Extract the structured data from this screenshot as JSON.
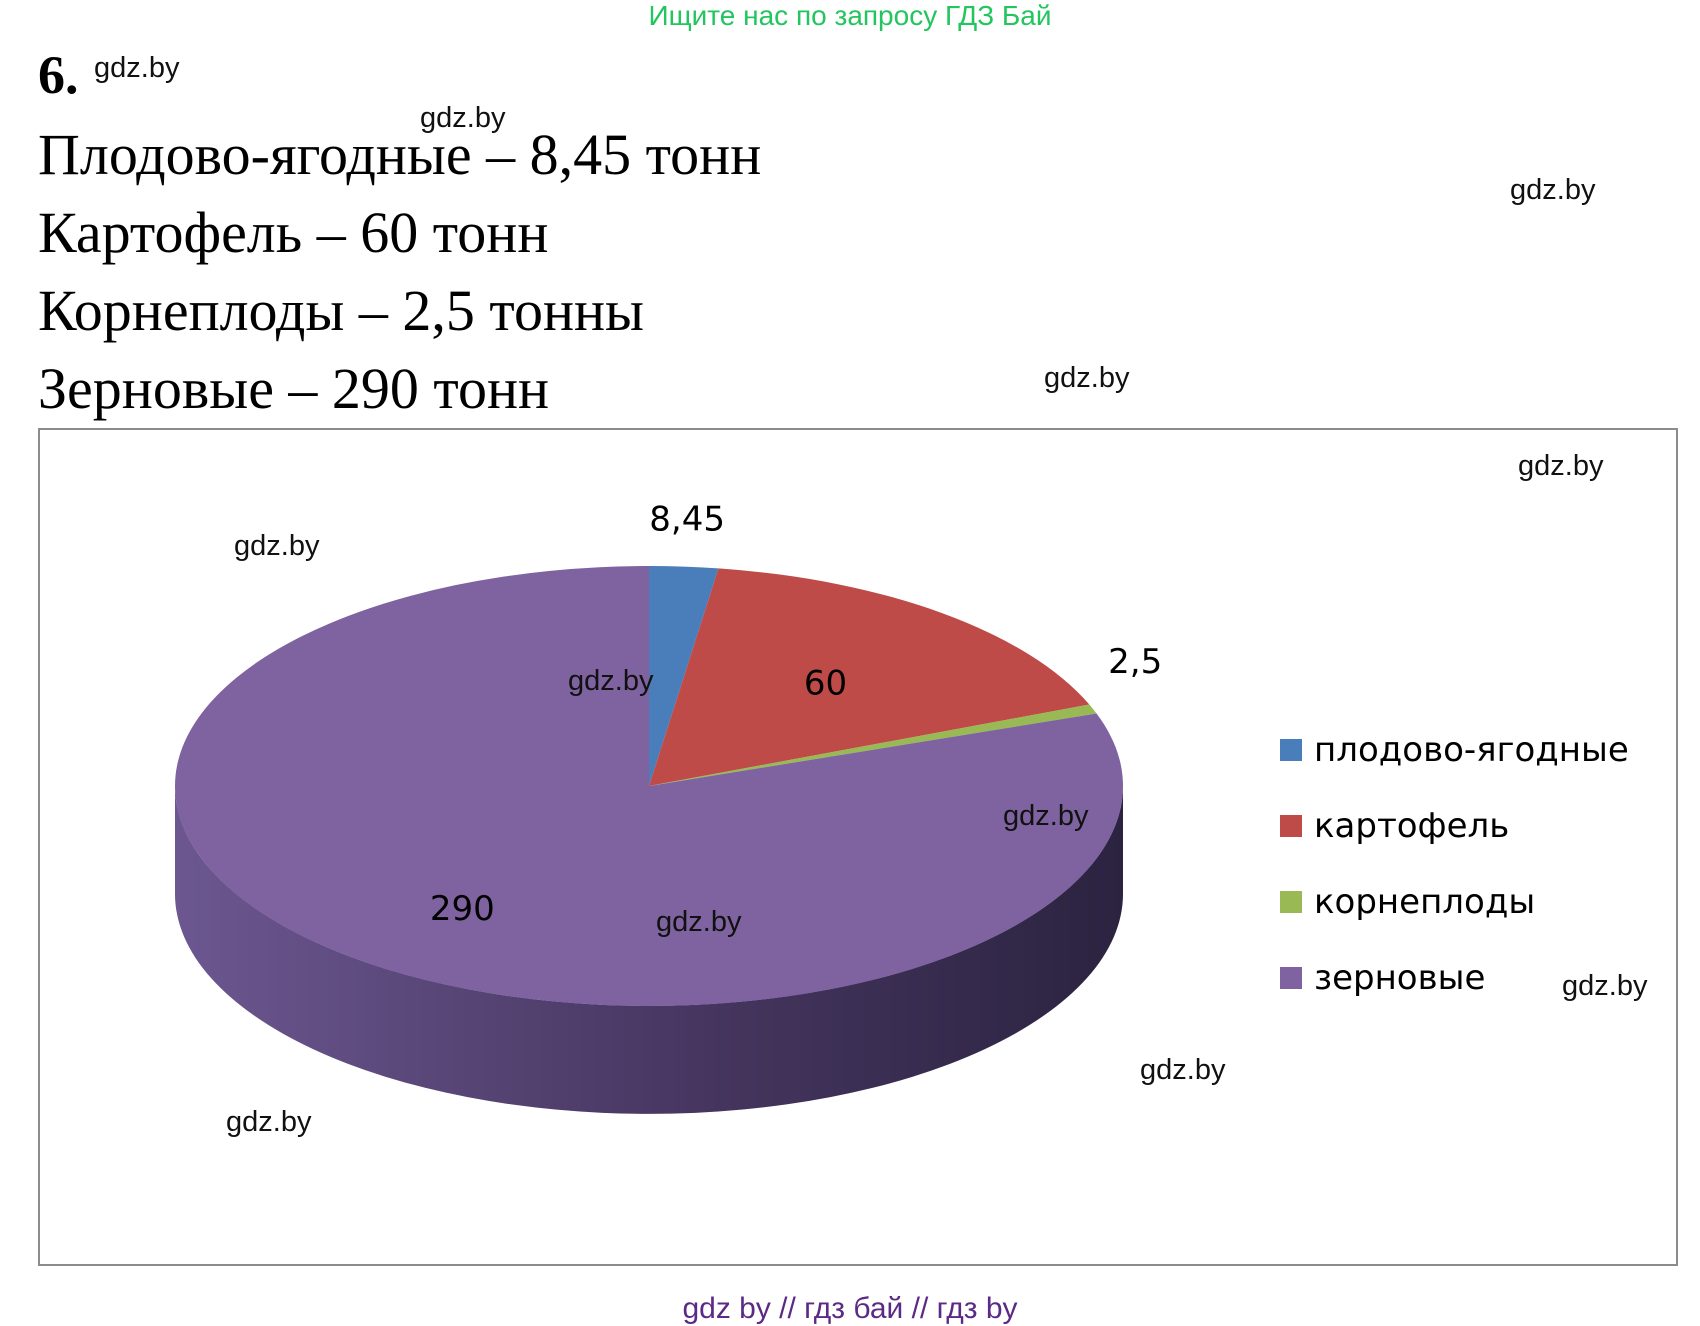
{
  "banner": "Ищите нас по запросу ГДЗ Бай",
  "task_number": "6.",
  "facts": [
    "Плодово-ягодные – 8,45 тонн",
    "Картофель – 60 тонн",
    "Корнеплоды – 2,5 тонны",
    "Зерновые – 290 тонн"
  ],
  "watermark": "gdz.by",
  "footer": "gdz by  //  гдз бай  //  гдз by",
  "chart_data": {
    "type": "pie",
    "title": "",
    "categories": [
      "плодово-ягодные",
      "картофель",
      "корнеплоды",
      "зерновые"
    ],
    "values": [
      8.45,
      60,
      2.5,
      290
    ],
    "data_labels": [
      "8,45",
      "60",
      "2,5",
      "290"
    ],
    "colors": [
      "#4a7ebb",
      "#be4b48",
      "#98b954",
      "#7e63a0"
    ],
    "style": "3d",
    "legend_position": "right"
  }
}
